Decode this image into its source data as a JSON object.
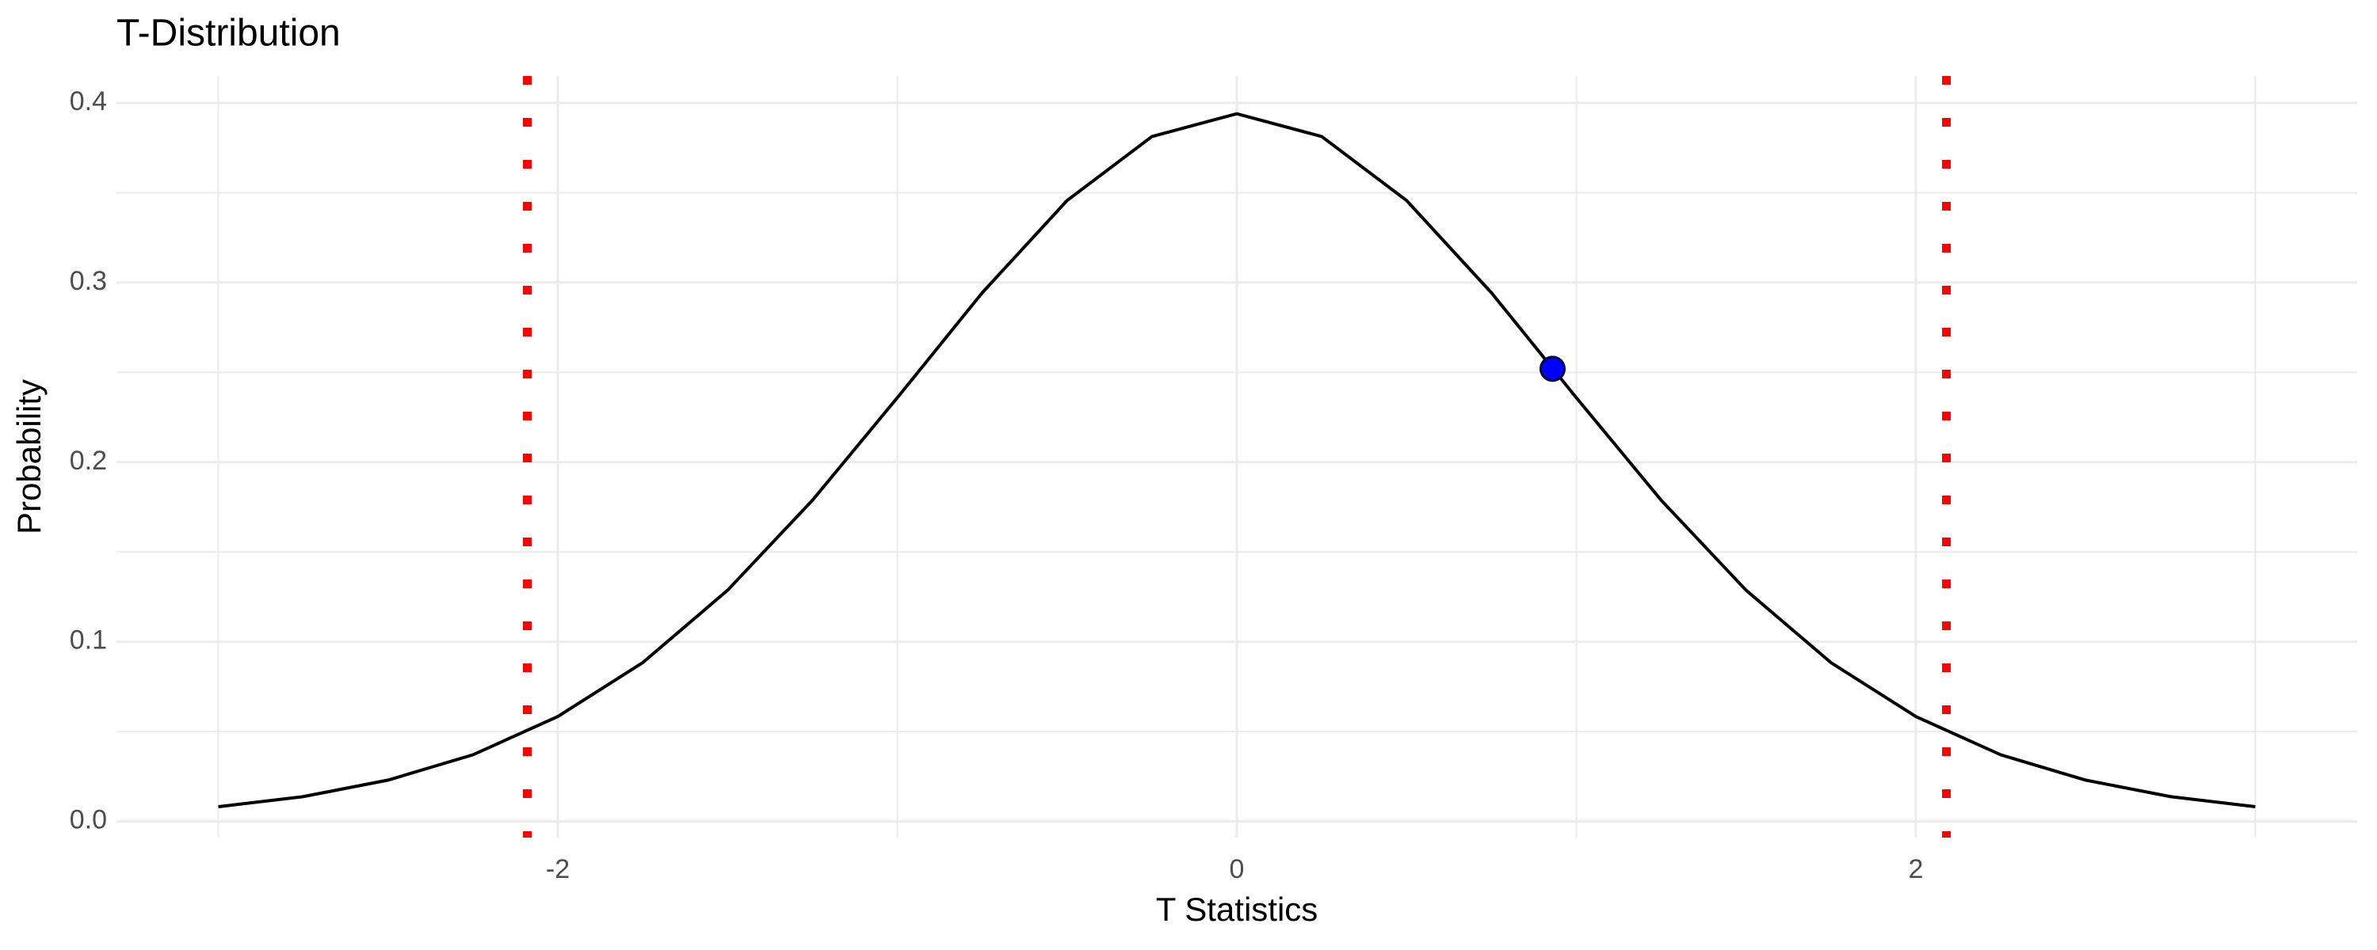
{
  "chart_data": {
    "type": "line",
    "title": "T-Distribution",
    "xlabel": "T Statistics",
    "ylabel": "Probability",
    "series": [
      {
        "color": "#000000",
        "x": [
          -3,
          -2.75,
          -2.5,
          -2.25,
          -2,
          -1.75,
          -1.5,
          -1.25,
          -1,
          -0.75,
          -0.5,
          -0.25,
          0,
          0.25,
          0.5,
          0.75,
          1,
          1.25,
          1.5,
          1.75,
          2,
          2.25,
          2.5,
          2.75,
          3
        ],
        "values": [
          0.0082,
          0.0138,
          0.023,
          0.0371,
          0.0584,
          0.0884,
          0.1287,
          0.1788,
          0.2359,
          0.2943,
          0.3457,
          0.3813,
          0.394,
          0.3813,
          0.3457,
          0.2943,
          0.2359,
          0.1788,
          0.1287,
          0.0884,
          0.0584,
          0.0371,
          0.023,
          0.0138,
          0.0082
        ]
      }
    ],
    "points": {
      "x": [
        0.93
      ],
      "values": [
        0.252
      ],
      "color": "#0000ff"
    },
    "vlines": {
      "x": [
        -2.09,
        2.09
      ],
      "color": "#ff0000"
    },
    "xlim": [
      -3.3,
      3.3
    ],
    "ylim": [
      -0.009,
      0.415
    ],
    "xticks": [
      -2,
      0,
      2
    ],
    "yticks": [
      {
        "value": 0,
        "label": "0.0"
      },
      0.1,
      0.2,
      0.3,
      0.4
    ],
    "x_minor_gridlines": [
      -3,
      -1,
      1,
      3
    ],
    "y_minor_gridlines": [
      0.05,
      0.15,
      0.25,
      0.35
    ],
    "grid": true
  }
}
